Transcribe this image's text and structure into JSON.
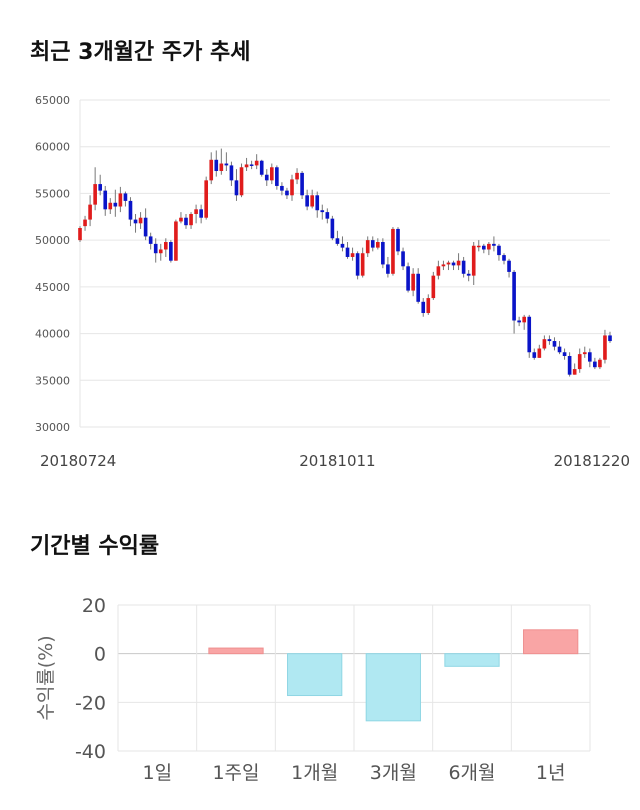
{
  "titles": {
    "price_trend": "최근 3개월간 주가 추세",
    "period_returns": "기간별 수익률"
  },
  "colors": {
    "up": "#e01c1c",
    "down": "#0a14c8",
    "grid": "#e6e6e6",
    "axis_text": "#555555",
    "bar_positive": "#f9a5a5",
    "bar_negative": "#b0e8f2"
  },
  "chart_data": [
    {
      "type": "candlestick",
      "title": "최근 3개월간 주가 추세",
      "ylim": [
        30000,
        65000
      ],
      "yticks": [
        "65000",
        "60000",
        "55000",
        "50000",
        "45000",
        "40000",
        "35000",
        "30000"
      ],
      "ytick_values": [
        65000,
        60000,
        55000,
        50000,
        45000,
        40000,
        35000,
        30000
      ],
      "xticks": [
        {
          "label": "20180724",
          "index": 0
        },
        {
          "label": "20181011",
          "index": 51
        },
        {
          "label": "20181220",
          "index": 98
        }
      ],
      "grid": true,
      "candles": [
        [
          50000,
          51300,
          49800,
          51500
        ],
        [
          51500,
          52200,
          51000,
          52600
        ],
        [
          52200,
          53800,
          51500,
          54800
        ],
        [
          53800,
          56000,
          53200,
          57800
        ],
        [
          56000,
          55300,
          54800,
          57000
        ],
        [
          55300,
          53300,
          52600,
          55800
        ],
        [
          53300,
          54000,
          52800,
          54500
        ],
        [
          54000,
          53600,
          52500,
          55400
        ],
        [
          53600,
          55000,
          53000,
          55700
        ],
        [
          55000,
          54200,
          53600,
          55200
        ],
        [
          54200,
          52200,
          51500,
          54600
        ],
        [
          52200,
          51800,
          50800,
          52800
        ],
        [
          51800,
          52400,
          51200,
          53000
        ],
        [
          52400,
          50400,
          50000,
          53400
        ],
        [
          50400,
          49600,
          49000,
          50800
        ],
        [
          49600,
          48600,
          47600,
          50200
        ],
        [
          48600,
          49000,
          47800,
          49600
        ],
        [
          49000,
          49800,
          48200,
          50200
        ],
        [
          49800,
          47800,
          47600,
          50000
        ],
        [
          47800,
          52000,
          47800,
          52200
        ],
        [
          52000,
          52400,
          51800,
          53000
        ],
        [
          52400,
          51600,
          51200,
          52800
        ],
        [
          51600,
          52800,
          51200,
          53000
        ],
        [
          52800,
          53300,
          51800,
          53800
        ],
        [
          53300,
          52400,
          51800,
          53800
        ],
        [
          52400,
          56400,
          52200,
          56800
        ],
        [
          56400,
          58600,
          56000,
          59400
        ],
        [
          58600,
          57400,
          56800,
          59600
        ],
        [
          57400,
          58200,
          57000,
          59800
        ],
        [
          58200,
          58000,
          57400,
          59400
        ],
        [
          58000,
          56400,
          55800,
          58400
        ],
        [
          56400,
          54800,
          54200,
          57600
        ],
        [
          54800,
          57800,
          54600,
          58200
        ],
        [
          57800,
          58100,
          57400,
          58800
        ],
        [
          58100,
          58000,
          57600,
          58500
        ],
        [
          58000,
          58500,
          57600,
          59200
        ],
        [
          58500,
          57000,
          56800,
          58600
        ],
        [
          57000,
          56400,
          55800,
          57600
        ],
        [
          56400,
          57800,
          56000,
          58200
        ],
        [
          57800,
          55800,
          55400,
          58000
        ],
        [
          55800,
          55300,
          54800,
          56200
        ],
        [
          55300,
          54800,
          54400,
          55600
        ],
        [
          54800,
          56500,
          54200,
          57000
        ],
        [
          56500,
          57200,
          56000,
          57700
        ],
        [
          57200,
          54800,
          54400,
          57400
        ],
        [
          54800,
          53600,
          53200,
          55400
        ],
        [
          53600,
          54800,
          53400,
          55400
        ],
        [
          54800,
          53200,
          52400,
          55200
        ],
        [
          53200,
          53000,
          52200,
          53800
        ],
        [
          53000,
          52300,
          51800,
          53400
        ],
        [
          52300,
          50200,
          50000,
          52600
        ],
        [
          50200,
          49600,
          49400,
          51000
        ],
        [
          49600,
          49200,
          48800,
          50400
        ],
        [
          49200,
          48200,
          48000,
          49800
        ],
        [
          48200,
          48600,
          47800,
          49200
        ],
        [
          48600,
          46200,
          45800,
          48800
        ],
        [
          46200,
          48600,
          46000,
          49200
        ],
        [
          48600,
          50000,
          48200,
          50400
        ],
        [
          50000,
          49200,
          48800,
          50400
        ],
        [
          49200,
          49800,
          49000,
          50200
        ],
        [
          49800,
          47400,
          47000,
          50200
        ],
        [
          47400,
          46400,
          46000,
          48200
        ],
        [
          46400,
          51200,
          46200,
          51400
        ],
        [
          51200,
          48800,
          48400,
          51400
        ],
        [
          48800,
          47200,
          46800,
          49200
        ],
        [
          47200,
          44600,
          44400,
          47600
        ],
        [
          44600,
          46400,
          44000,
          47000
        ],
        [
          46400,
          43400,
          43200,
          47000
        ],
        [
          43400,
          42200,
          41800,
          43800
        ],
        [
          42200,
          43800,
          42000,
          44200
        ],
        [
          43800,
          46200,
          43600,
          46600
        ],
        [
          46200,
          47200,
          45800,
          47800
        ],
        [
          47200,
          47400,
          46800,
          47800
        ],
        [
          47400,
          47600,
          46800,
          47800
        ],
        [
          47600,
          47300,
          46800,
          47800
        ],
        [
          47300,
          47800,
          46800,
          48600
        ],
        [
          47800,
          46400,
          46000,
          48200
        ],
        [
          46400,
          46200,
          45600,
          46800
        ],
        [
          46200,
          49400,
          45200,
          49800
        ],
        [
          49400,
          49400,
          48800,
          50000
        ],
        [
          49400,
          49000,
          48600,
          49600
        ],
        [
          49000,
          49600,
          48400,
          49800
        ],
        [
          49600,
          49400,
          48800,
          50400
        ],
        [
          49400,
          48400,
          47800,
          49600
        ],
        [
          48400,
          47800,
          47400,
          48600
        ],
        [
          47800,
          46600,
          46000,
          48000
        ],
        [
          46600,
          41400,
          40000,
          46800
        ],
        [
          41400,
          41200,
          40800,
          41800
        ],
        [
          41200,
          41800,
          40400,
          42000
        ],
        [
          41800,
          38000,
          37400,
          42000
        ],
        [
          38000,
          37400,
          37200,
          38400
        ],
        [
          37400,
          38400,
          37400,
          38800
        ],
        [
          38400,
          39400,
          38200,
          39800
        ],
        [
          39400,
          39200,
          38800,
          39800
        ],
        [
          39200,
          38600,
          38200,
          39600
        ],
        [
          38600,
          38000,
          37800,
          39200
        ],
        [
          38000,
          37600,
          37200,
          38400
        ],
        [
          37600,
          35600,
          35400,
          38000
        ],
        [
          35600,
          36200,
          35600,
          36800
        ],
        [
          36200,
          37800,
          35800,
          38400
        ],
        [
          37800,
          38000,
          37400,
          38600
        ],
        [
          38000,
          37000,
          36400,
          38400
        ],
        [
          37000,
          36400,
          36200,
          37400
        ],
        [
          36400,
          37200,
          36200,
          37400
        ],
        [
          37200,
          39800,
          36800,
          40400
        ],
        [
          39800,
          39200,
          39000,
          40200
        ]
      ]
    },
    {
      "type": "bar",
      "title": "기간별 수익률",
      "ylabel": "수익률(%)",
      "categories": [
        "1일",
        "1주일",
        "1개월",
        "3개월",
        "6개월",
        "1년"
      ],
      "values": [
        0,
        2.3,
        -17.2,
        -27.6,
        -5.2,
        9.8
      ],
      "ylim": [
        -40,
        20
      ],
      "yticks": [
        "20",
        "0",
        "-20",
        "-40"
      ],
      "ytick_values": [
        20,
        0,
        -20,
        -40
      ],
      "grid": true
    }
  ]
}
